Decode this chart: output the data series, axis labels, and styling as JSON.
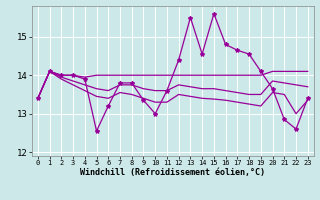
{
  "x": [
    0,
    1,
    2,
    3,
    4,
    5,
    6,
    7,
    8,
    9,
    10,
    11,
    12,
    13,
    14,
    15,
    16,
    17,
    18,
    19,
    20,
    21,
    22,
    23
  ],
  "line1": [
    13.4,
    14.1,
    14.0,
    14.0,
    13.9,
    12.55,
    13.2,
    13.8,
    13.8,
    13.35,
    13.0,
    13.6,
    14.4,
    15.5,
    14.55,
    15.6,
    14.8,
    14.65,
    14.55,
    14.1,
    13.65,
    12.85,
    12.6,
    13.4
  ],
  "line2": [
    13.4,
    14.1,
    14.0,
    14.0,
    13.95,
    14.0,
    14.0,
    14.0,
    14.0,
    14.0,
    14.0,
    14.0,
    14.0,
    14.0,
    14.0,
    14.0,
    14.0,
    14.0,
    14.0,
    14.0,
    14.1,
    14.1,
    14.1,
    14.1
  ],
  "line3": [
    13.4,
    14.1,
    13.95,
    13.85,
    13.75,
    13.65,
    13.6,
    13.75,
    13.75,
    13.65,
    13.6,
    13.6,
    13.75,
    13.7,
    13.65,
    13.65,
    13.6,
    13.55,
    13.5,
    13.5,
    13.85,
    13.8,
    13.75,
    13.7
  ],
  "line4": [
    13.4,
    14.1,
    13.9,
    13.75,
    13.6,
    13.45,
    13.4,
    13.55,
    13.5,
    13.4,
    13.3,
    13.3,
    13.5,
    13.45,
    13.4,
    13.38,
    13.35,
    13.3,
    13.25,
    13.2,
    13.55,
    13.5,
    13.0,
    13.35
  ],
  "color": "#990099",
  "bg_color": "#cce8e8",
  "ylim": [
    11.9,
    15.8
  ],
  "xlim": [
    -0.5,
    23.5
  ],
  "xlabel": "Windchill (Refroidissement éolien,°C)",
  "yticks": [
    12,
    13,
    14,
    15
  ],
  "xticks": [
    0,
    1,
    2,
    3,
    4,
    5,
    6,
    7,
    8,
    9,
    10,
    11,
    12,
    13,
    14,
    15,
    16,
    17,
    18,
    19,
    20,
    21,
    22,
    23
  ]
}
